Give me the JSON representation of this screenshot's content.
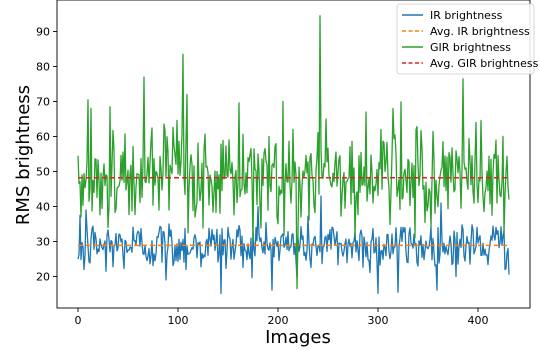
{
  "chart_data": {
    "type": "line",
    "xlabel": "Images",
    "ylabel": "RMS brightness",
    "xlim": [
      -21,
      452
    ],
    "ylim": [
      11,
      99
    ],
    "xticks": [
      0,
      100,
      200,
      300,
      400
    ],
    "yticks": [
      20,
      30,
      40,
      50,
      60,
      70,
      80,
      90
    ],
    "grid": false,
    "legend_position": "top-right",
    "n_points": 432,
    "series": [
      {
        "name": "IR brightness",
        "color": "#1f77b4",
        "style": "solid",
        "mean": 28.9,
        "spread": 3.6,
        "min": 15.1,
        "max": 43,
        "anchors": [
          [
            0,
            25.0
          ],
          [
            2,
            37.5
          ],
          [
            6,
            22.0
          ],
          [
            8,
            39.0
          ],
          [
            28,
            21.5
          ],
          [
            88,
            19.0
          ],
          [
            143,
            15.1
          ],
          [
            180,
            40.0
          ],
          [
            219,
            19.5
          ],
          [
            243,
            43.0
          ],
          [
            300,
            15.2
          ],
          [
            320,
            15.5
          ],
          [
            363,
            41.0
          ],
          [
            427,
            22.0
          ],
          [
            430,
            28.0
          ]
        ]
      },
      {
        "name": "Avg. IR brightness",
        "color": "#ff7f0e",
        "style": "dashed",
        "constant": 28.9,
        "x_range": [
          0,
          431
        ]
      },
      {
        "name": "GIR brightness",
        "color": "#2ca02c",
        "style": "solid",
        "mean": 48.2,
        "spread": 7.0,
        "min": 16.5,
        "max": 94.5,
        "anchors": [
          [
            0,
            54.5
          ],
          [
            3,
            37.0
          ],
          [
            10,
            70.5
          ],
          [
            12,
            45.0
          ],
          [
            13,
            68.0
          ],
          [
            32,
            68.5
          ],
          [
            66,
            77.0
          ],
          [
            105,
            83.5
          ],
          [
            109,
            72.0
          ],
          [
            175,
            30.0
          ],
          [
            205,
            70.0
          ],
          [
            219,
            16.5
          ],
          [
            242,
            94.5
          ],
          [
            245,
            48.0
          ],
          [
            248,
            65.0
          ],
          [
            288,
            67.0
          ],
          [
            315,
            68.0
          ],
          [
            385,
            76.5
          ],
          [
            398,
            64.0
          ],
          [
            431,
            42.0
          ]
        ]
      },
      {
        "name": "Avg. GIR brightness",
        "color": "#d62728",
        "style": "dashed",
        "constant": 48.2,
        "x_range": [
          0,
          431
        ]
      }
    ]
  }
}
